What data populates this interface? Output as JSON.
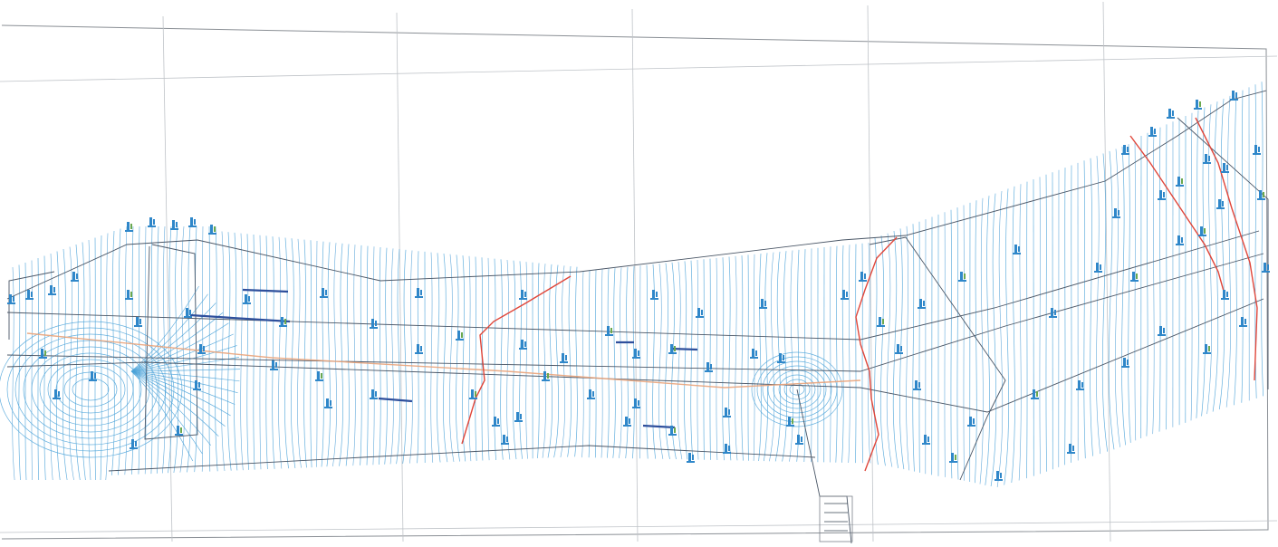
{
  "map": {
    "colors": {
      "contour": "#4aa2d8",
      "boundary": "#4a5666",
      "river": "#e0463a",
      "road_center": "#e9a37a",
      "structure": "#2e4f9c",
      "survey_point": "#2f87c9",
      "vegetation": "#6aa84f",
      "grid": "#bfc3c8"
    }
  }
}
